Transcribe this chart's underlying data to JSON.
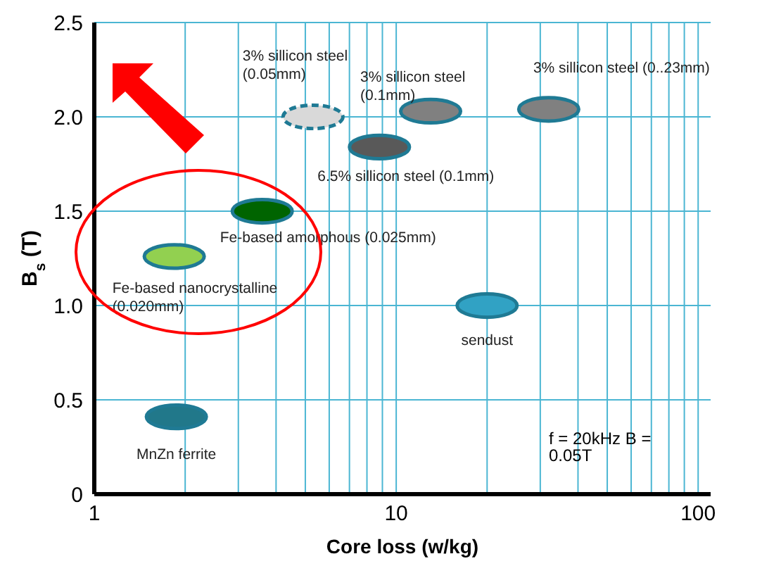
{
  "chart_data": {
    "type": "scatter",
    "xlabel": "Core loss (w/kg)",
    "ylabel": "B$_{s}$ (T)",
    "log": "x",
    "xlim": [
      1,
      110
    ],
    "ylim": [
      0,
      2.5
    ],
    "xticks": [
      1,
      {
        "value": 2,
        "label": null
      },
      {
        "value": 3,
        "label": null
      },
      {
        "value": 4,
        "label": null
      },
      {
        "value": 5,
        "label": null
      },
      {
        "value": 6,
        "label": null
      },
      {
        "value": 7,
        "label": null
      },
      {
        "value": 8,
        "label": null
      },
      {
        "value": 9,
        "label": null
      },
      10,
      {
        "value": 20,
        "label": null
      },
      {
        "value": 30,
        "label": null
      },
      {
        "value": 40,
        "label": null
      },
      {
        "value": 50,
        "label": null
      },
      {
        "value": 60,
        "label": null
      },
      {
        "value": 70,
        "label": null
      },
      {
        "value": 80,
        "label": null
      },
      {
        "value": 90,
        "label": null
      },
      100
    ],
    "yticks": [
      0,
      {
        "value": 0.5,
        "label": "0.5"
      },
      {
        "value": 1,
        "label": "1.0"
      },
      {
        "value": 1.5,
        "label": "1.5"
      },
      {
        "value": 2,
        "label": "2.0"
      },
      {
        "value": 2.5,
        "label": "2.5"
      }
    ],
    "grid": true,
    "series": [
      {
        "name": "Fe-based nanocrystalline (0.020mm)",
        "color": "#92d050",
        "x": [
          1.84
        ],
        "values": [
          1.26
        ]
      },
      {
        "name": "Fe-based amorphous (0.025mm)",
        "color": "#006400",
        "x": [
          3.6
        ],
        "values": [
          1.5
        ]
      },
      {
        "name": "3% sillicon steel (0.05mm)",
        "color": "#d9d9d9",
        "x": [
          5.3
        ],
        "values": [
          2.0
        ],
        "line_style": "dashed"
      },
      {
        "name": "3% sillicon steel (0.1mm)",
        "color": "#808080",
        "x": [
          13
        ],
        "values": [
          2.03
        ]
      },
      {
        "name": "6.5% sillicon steel (0.1mm)",
        "color": "#595959",
        "x": [
          8.8
        ],
        "values": [
          1.84
        ]
      },
      {
        "name": "3% sillicon steel (0..23mm)",
        "color": "#808080",
        "x": [
          32
        ],
        "values": [
          2.04
        ]
      },
      {
        "name": "sendust",
        "color": "#31a2c4",
        "x": [
          20
        ],
        "values": [
          1.0
        ]
      },
      {
        "name": "MnZn ferrite",
        "color": "#21788a",
        "x": [
          1.87
        ],
        "values": [
          0.41
        ]
      }
    ],
    "annotations": [
      "f = 20kHz  B = 0.05T"
    ]
  }
}
